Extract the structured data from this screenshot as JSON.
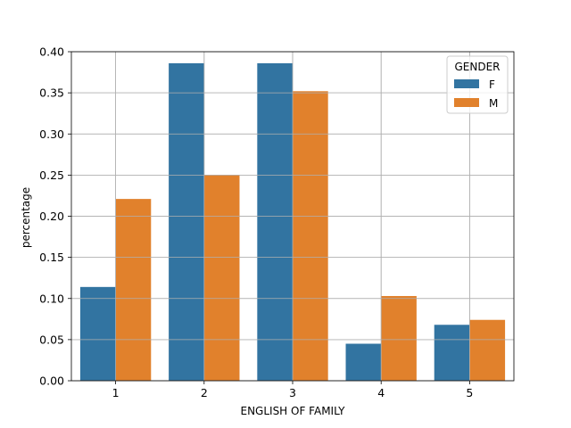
{
  "chart_data": {
    "type": "bar",
    "categories": [
      "1",
      "2",
      "3",
      "4",
      "5"
    ],
    "series": [
      {
        "name": "F",
        "color": "#3274a1",
        "values": [
          0.114,
          0.386,
          0.386,
          0.045,
          0.068
        ]
      },
      {
        "name": "M",
        "color": "#e1812c",
        "values": [
          0.221,
          0.25,
          0.352,
          0.103,
          0.074
        ]
      }
    ],
    "xlabel": "ENGLISH OF FAMILY",
    "ylabel": "percentage",
    "ylim": [
      0,
      0.4
    ],
    "yticks": [
      "0.00",
      "0.05",
      "0.10",
      "0.15",
      "0.20",
      "0.25",
      "0.30",
      "0.35",
      "0.40"
    ],
    "grid": true,
    "legend": {
      "title": "GENDER",
      "placement": "top-right"
    }
  }
}
